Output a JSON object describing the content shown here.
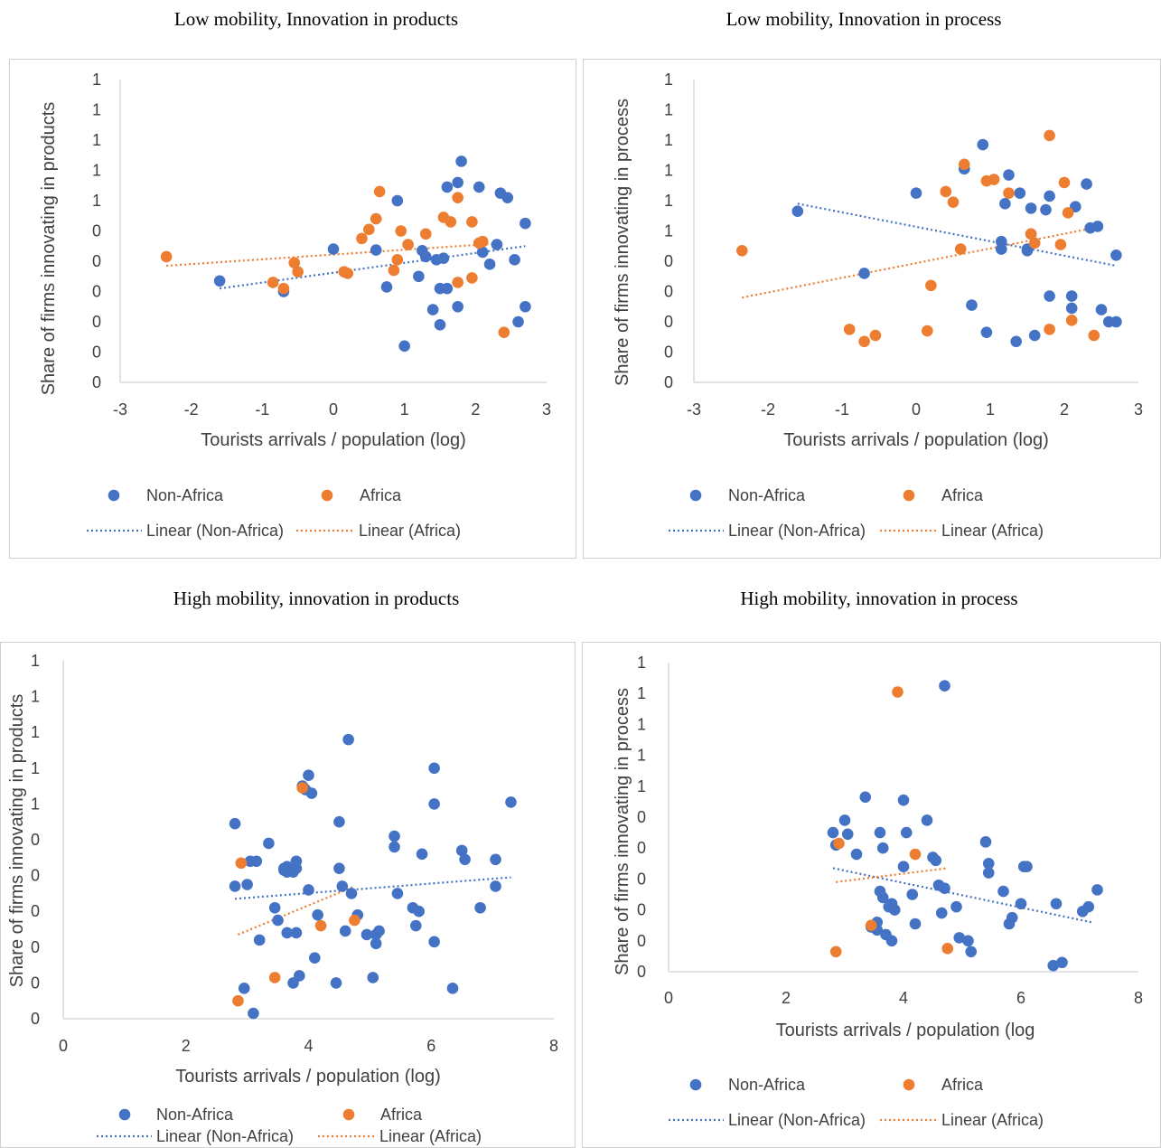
{
  "colors": {
    "non_africa": "#4472C4",
    "africa": "#ED7D31",
    "axis": "#d9d9d9",
    "text": "#404040"
  },
  "legend": {
    "non_africa": "Non-Africa",
    "africa": "Africa",
    "linear_non_africa": "Linear (Non-Africa)",
    "linear_africa": "Linear (Africa)"
  },
  "chart_data": [
    {
      "type": "scatter",
      "title": "Low mobility, Innovation in products",
      "xlabel": "Tourists arrivals / population (log)",
      "ylabel": "Share of firms innovating in products",
      "xlim": [
        -3,
        3
      ],
      "ylim": [
        0,
        1
      ],
      "xticks": [
        "-3",
        "-2",
        "-1",
        "0",
        "1",
        "2",
        "3"
      ],
      "yticks": [
        "0",
        "0",
        "0",
        "0",
        "0",
        "0",
        "1",
        "1",
        "1",
        "1",
        "1"
      ],
      "grid": false,
      "legend_position": "bottom",
      "series": [
        {
          "name": "Non-Africa",
          "x": [
            -1.6,
            -0.7,
            0.0,
            0.6,
            0.75,
            0.9,
            1.0,
            1.2,
            1.25,
            1.3,
            1.4,
            1.45,
            1.5,
            1.5,
            1.55,
            1.6,
            1.6,
            1.75,
            1.75,
            1.8,
            2.05,
            2.1,
            2.2,
            2.3,
            2.35,
            2.45,
            2.55,
            2.6,
            2.7,
            2.7
          ],
          "y": [
            0.335,
            0.3,
            0.44,
            0.437,
            0.315,
            0.6,
            0.12,
            0.35,
            0.435,
            0.415,
            0.24,
            0.405,
            0.31,
            0.19,
            0.41,
            0.645,
            0.31,
            0.66,
            0.25,
            0.73,
            0.645,
            0.43,
            0.39,
            0.455,
            0.625,
            0.61,
            0.405,
            0.2,
            0.525,
            0.25
          ]
        },
        {
          "name": "Africa",
          "x": [
            -2.35,
            -0.85,
            -0.7,
            -0.55,
            -0.5,
            0.15,
            0.2,
            0.4,
            0.5,
            0.6,
            0.65,
            0.85,
            0.9,
            0.95,
            1.05,
            1.3,
            1.55,
            1.65,
            1.75,
            1.75,
            1.95,
            1.95,
            2.05,
            2.1,
            2.4
          ],
          "y": [
            0.415,
            0.33,
            0.31,
            0.395,
            0.365,
            0.365,
            0.36,
            0.475,
            0.505,
            0.54,
            0.63,
            0.37,
            0.405,
            0.5,
            0.455,
            0.49,
            0.545,
            0.53,
            0.33,
            0.61,
            0.345,
            0.53,
            0.46,
            0.465,
            0.165
          ]
        }
      ],
      "trendlines": [
        {
          "name": "Linear (Non-Africa)",
          "x": [
            -1.6,
            2.7
          ],
          "y": [
            0.31,
            0.45
          ]
        },
        {
          "name": "Linear (Africa)",
          "x": [
            -2.35,
            2.4
          ],
          "y": [
            0.385,
            0.46
          ]
        }
      ]
    },
    {
      "type": "scatter",
      "title": "Low mobility, Innovation in process",
      "xlabel": "Tourists arrivals / population (log)",
      "ylabel": "Share of firms innovating in process",
      "xlim": [
        -3,
        3
      ],
      "ylim": [
        0,
        1
      ],
      "xticks": [
        "-3",
        "-2",
        "-1",
        "0",
        "1",
        "2",
        "3"
      ],
      "yticks": [
        "0",
        "0",
        "0",
        "0",
        "0",
        "1",
        "1",
        "1",
        "1",
        "1",
        "1"
      ],
      "grid": false,
      "legend_position": "bottom",
      "series": [
        {
          "name": "Non-Africa",
          "x": [
            -1.6,
            -0.7,
            0.0,
            0.65,
            0.75,
            0.9,
            0.95,
            1.15,
            1.15,
            1.2,
            1.25,
            1.35,
            1.4,
            1.5,
            1.5,
            1.55,
            1.55,
            1.6,
            1.75,
            1.8,
            1.8,
            2.1,
            2.1,
            2.15,
            2.3,
            2.35,
            2.45,
            2.5,
            2.6,
            2.7,
            2.7
          ],
          "y": [
            0.565,
            0.36,
            0.625,
            0.705,
            0.255,
            0.785,
            0.165,
            0.465,
            0.44,
            0.59,
            0.685,
            0.135,
            0.625,
            0.44,
            0.435,
            0.575,
            0.49,
            0.155,
            0.57,
            0.615,
            0.285,
            0.285,
            0.245,
            0.58,
            0.655,
            0.51,
            0.515,
            0.24,
            0.2,
            0.2,
            0.42
          ]
        },
        {
          "name": "Africa",
          "x": [
            -2.35,
            -0.9,
            -0.7,
            -0.55,
            0.15,
            0.2,
            0.4,
            0.5,
            0.6,
            0.65,
            0.95,
            1.05,
            1.25,
            1.55,
            1.6,
            1.8,
            1.8,
            1.95,
            2.0,
            2.05,
            2.1,
            2.4
          ],
          "y": [
            0.435,
            0.175,
            0.135,
            0.155,
            0.17,
            0.32,
            0.63,
            0.595,
            0.44,
            0.72,
            0.665,
            0.67,
            0.625,
            0.49,
            0.46,
            0.175,
            0.815,
            0.455,
            0.66,
            0.56,
            0.205,
            0.155
          ]
        }
      ],
      "trendlines": [
        {
          "name": "Linear (Non-Africa)",
          "x": [
            -1.6,
            2.7
          ],
          "y": [
            0.59,
            0.385
          ]
        },
        {
          "name": "Linear (Africa)",
          "x": [
            -2.35,
            2.4
          ],
          "y": [
            0.28,
            0.51
          ]
        }
      ]
    },
    {
      "type": "scatter",
      "title": "High mobility, innovation in products",
      "xlabel": "Tourists arrivals / population (log)",
      "ylabel": "Share of firms innovating in products",
      "xlim": [
        0,
        8
      ],
      "ylim": [
        0,
        1
      ],
      "xticks": [
        "0",
        "2",
        "4",
        "6",
        "8"
      ],
      "yticks": [
        "0",
        "0",
        "0",
        "0",
        "0",
        "0",
        "1",
        "1",
        "1",
        "1",
        "1"
      ],
      "grid": false,
      "legend_position": "bottom",
      "series": [
        {
          "name": "Non-Africa",
          "x": [
            2.8,
            2.8,
            2.95,
            3.0,
            3.05,
            3.1,
            3.15,
            3.2,
            3.35,
            3.45,
            3.5,
            3.6,
            3.6,
            3.65,
            3.65,
            3.65,
            3.75,
            3.8,
            3.8,
            3.8,
            3.85,
            3.9,
            3.95,
            4.0,
            4.0,
            4.05,
            4.1,
            4.15,
            4.5,
            4.5,
            4.55,
            4.6,
            4.65,
            4.7,
            4.8,
            4.95,
            5.1,
            5.1,
            5.15,
            5.4,
            5.4,
            5.45,
            5.7,
            5.75,
            5.8,
            5.85,
            6.05,
            6.05,
            6.05,
            6.35,
            6.5,
            6.55,
            6.8,
            7.05,
            7.05,
            7.3,
            5.05,
            4.45,
            3.75
          ],
          "y": [
            0.545,
            0.37,
            0.085,
            0.375,
            0.44,
            0.015,
            0.44,
            0.22,
            0.49,
            0.31,
            0.275,
            0.42,
            0.415,
            0.425,
            0.41,
            0.24,
            0.41,
            0.42,
            0.44,
            0.24,
            0.12,
            0.65,
            0.64,
            0.36,
            0.68,
            0.63,
            0.17,
            0.29,
            0.55,
            0.42,
            0.37,
            0.245,
            0.78,
            0.35,
            0.29,
            0.235,
            0.235,
            0.21,
            0.245,
            0.48,
            0.51,
            0.35,
            0.31,
            0.26,
            0.3,
            0.46,
            0.7,
            0.215,
            0.6,
            0.085,
            0.47,
            0.445,
            0.31,
            0.37,
            0.445,
            0.605,
            0.115,
            0.1,
            0.1
          ]
        },
        {
          "name": "Africa",
          "x": [
            2.85,
            2.9,
            3.45,
            3.9,
            4.2,
            4.75
          ],
          "y": [
            0.05,
            0.435,
            0.115,
            0.645,
            0.26,
            0.275
          ]
        }
      ],
      "trendlines": [
        {
          "name": "Linear (Non-Africa)",
          "x": [
            2.8,
            7.3
          ],
          "y": [
            0.335,
            0.395
          ]
        },
        {
          "name": "Linear (Africa)",
          "x": [
            2.85,
            4.75
          ],
          "y": [
            0.235,
            0.37
          ]
        }
      ]
    },
    {
      "type": "scatter",
      "title": "High mobility, innovation in process",
      "xlabel": "Tourists arrivals / population (log",
      "ylabel": "Share of firms innovating in process",
      "xlim": [
        0,
        8
      ],
      "ylim": [
        0,
        1
      ],
      "xticks": [
        "0",
        "2",
        "4",
        "6",
        "8"
      ],
      "yticks": [
        "0",
        "0",
        "0",
        "0",
        "0",
        "0",
        "1",
        "1",
        "1",
        "1",
        "1"
      ],
      "grid": false,
      "legend_position": "bottom",
      "series": [
        {
          "name": "Non-Africa",
          "x": [
            2.8,
            2.85,
            3.0,
            3.05,
            3.2,
            3.35,
            3.45,
            3.55,
            3.55,
            3.6,
            3.65,
            3.65,
            3.7,
            3.75,
            3.8,
            3.8,
            3.85,
            4.0,
            4.0,
            4.05,
            4.15,
            4.2,
            4.4,
            4.5,
            4.55,
            4.6,
            4.65,
            4.7,
            4.7,
            4.9,
            4.95,
            5.1,
            5.15,
            5.4,
            5.45,
            5.45,
            5.7,
            5.8,
            5.85,
            6.0,
            6.05,
            6.1,
            6.55,
            6.6,
            6.7,
            7.05,
            7.15,
            7.3,
            3.6
          ],
          "y": [
            0.45,
            0.41,
            0.49,
            0.445,
            0.38,
            0.565,
            0.145,
            0.16,
            0.135,
            0.45,
            0.4,
            0.24,
            0.12,
            0.21,
            0.22,
            0.1,
            0.2,
            0.34,
            0.555,
            0.45,
            0.25,
            0.155,
            0.49,
            0.37,
            0.36,
            0.28,
            0.19,
            0.925,
            0.27,
            0.21,
            0.11,
            0.1,
            0.065,
            0.42,
            0.35,
            0.32,
            0.26,
            0.155,
            0.175,
            0.22,
            0.34,
            0.34,
            0.02,
            0.22,
            0.03,
            0.195,
            0.21,
            0.265,
            0.26
          ]
        },
        {
          "name": "Africa",
          "x": [
            2.85,
            2.9,
            3.45,
            3.9,
            4.2,
            4.75
          ],
          "y": [
            0.065,
            0.415,
            0.15,
            0.905,
            0.38,
            0.075
          ]
        }
      ],
      "trendlines": [
        {
          "name": "Linear (Non-Africa)",
          "x": [
            2.8,
            7.2
          ],
          "y": [
            0.335,
            0.16
          ]
        },
        {
          "name": "Linear (Africa)",
          "x": [
            2.85,
            4.75
          ],
          "y": [
            0.29,
            0.335
          ]
        }
      ]
    }
  ]
}
